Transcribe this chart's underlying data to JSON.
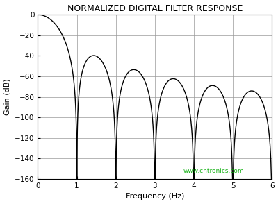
{
  "title": "NORMALIZED DIGITAL FILTER RESPONSE",
  "xlabel": "Frequency (Hz)",
  "ylabel": "Gain (dB)",
  "xlim": [
    0,
    6
  ],
  "ylim": [
    -160,
    0
  ],
  "xticks": [
    0,
    1,
    2,
    3,
    4,
    5,
    6
  ],
  "yticks": [
    0,
    -20,
    -40,
    -60,
    -80,
    -100,
    -120,
    -140,
    -160
  ],
  "line_color": "#000000",
  "bg_color": "#ffffff",
  "grid_color": "#999999",
  "title_fontsize": 9,
  "label_fontsize": 8,
  "tick_fontsize": 7.5,
  "watermark": "www.cntronics.com",
  "watermark_color": "#00aa00",
  "sinc_power": 3,
  "N": 20000,
  "clip_min": -160
}
